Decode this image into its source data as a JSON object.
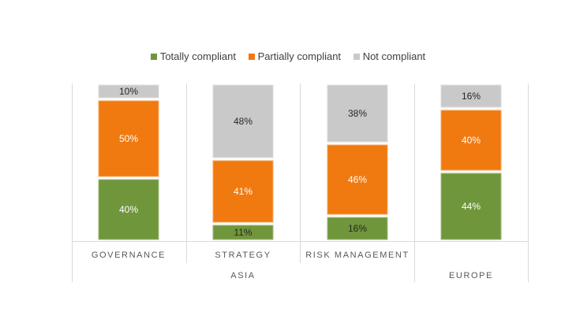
{
  "chart_data": {
    "type": "bar",
    "stacked": true,
    "normalized": true,
    "legend_position": "top",
    "grid": false,
    "ylim": [
      0,
      100
    ],
    "categories": [
      "GOVERNANCE",
      "STRATEGY",
      "RISK MANAGEMENT",
      ""
    ],
    "groups": [
      {
        "label": "ASIA",
        "categories": [
          "GOVERNANCE",
          "STRATEGY",
          "RISK MANAGEMENT"
        ]
      },
      {
        "label": "EUROPE",
        "categories": [
          ""
        ]
      }
    ],
    "series": [
      {
        "name": "Totally compliant",
        "color": "#70963B",
        "values": [
          40,
          11,
          16,
          44
        ],
        "labels": [
          "40%",
          "11%",
          "16%",
          "44%"
        ]
      },
      {
        "name": "Partially compliant",
        "color": "#F07A10",
        "values": [
          50,
          41,
          46,
          40
        ],
        "labels": [
          "50%",
          "41%",
          "46%",
          "40%"
        ]
      },
      {
        "name": "Not compliant",
        "color": "#C9C9C9",
        "values": [
          10,
          48,
          38,
          16
        ],
        "labels": [
          "10%",
          "48%",
          "38%",
          "16%"
        ]
      }
    ]
  }
}
